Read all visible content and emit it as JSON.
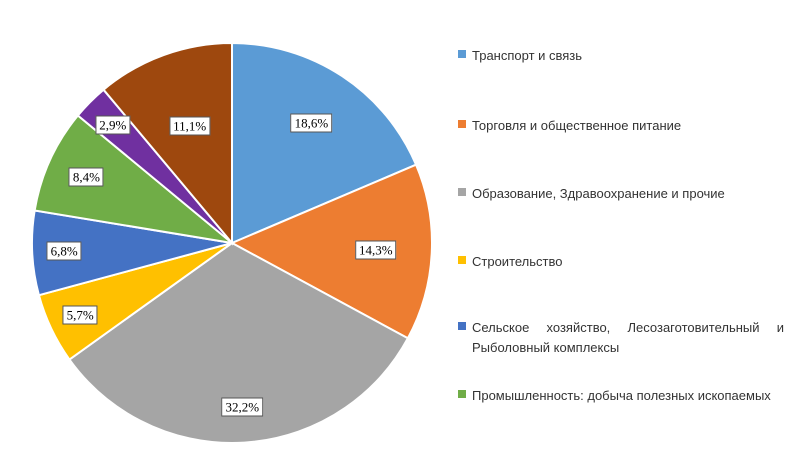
{
  "chart_data": {
    "type": "pie",
    "start_angle_deg": 0,
    "direction": "clockwise",
    "slices": [
      {
        "name": "Транспорт и связь",
        "value": 18.6,
        "label": "18,6%",
        "color": "#5B9BD5"
      },
      {
        "name": "Торговля и общественное питание",
        "value": 14.3,
        "label": "14,3%",
        "color": "#ED7D31"
      },
      {
        "name": "Образование, Здравоохранение и прочие",
        "value": 32.2,
        "label": "32,2%",
        "color": "#A5A5A5"
      },
      {
        "name": "Строительство",
        "value": 5.7,
        "label": "5,7%",
        "color": "#FFC000"
      },
      {
        "name": "Сельское хозяйство, Лесозаготовительный и Рыболовный комплексы",
        "value": 6.8,
        "label": "6,8%",
        "color": "#4472C4"
      },
      {
        "name": "Промышленность: добыча полезных ископаемых",
        "value": 8.4,
        "label": "8,4%",
        "color": "#70AD47"
      },
      {
        "name": "",
        "value": 2.9,
        "label": "2,9%",
        "color": "#7030A0"
      },
      {
        "name": "",
        "value": 11.1,
        "label": "11,1%",
        "color": "#9E480E"
      }
    ],
    "legend_position": "right"
  }
}
